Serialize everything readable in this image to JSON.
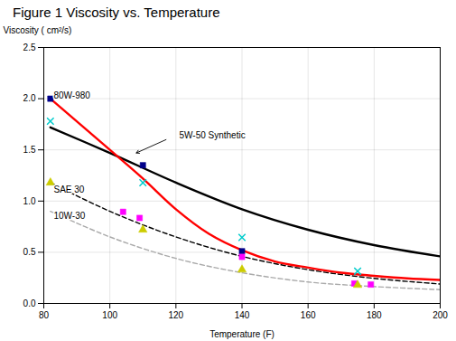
{
  "chart_data": {
    "type": "line",
    "title": "Figure 1 Viscosity vs. Temperature",
    "xlabel": "Temperature (F)",
    "ylabel": "Viscosity ( cm²/s)",
    "xlim": [
      80,
      200
    ],
    "ylim": [
      0,
      2.5
    ],
    "xticks": [
      80,
      100,
      120,
      140,
      160,
      180,
      200
    ],
    "yticks": [
      {
        "value": 0,
        "label": "0.0"
      },
      {
        "value": 0.5,
        "label": "0.5"
      },
      {
        "value": 1.0,
        "label": "1.0"
      },
      {
        "value": 1.5,
        "label": "1.5"
      },
      {
        "value": 2.0,
        "label": "2.0"
      },
      {
        "value": 2.5,
        "label": "2.5"
      }
    ],
    "grid": true,
    "series": [
      {
        "type": "line",
        "color": "#ff0000",
        "line_style": "solid",
        "x": [
          82,
          100,
          110,
          120,
          130,
          140,
          150,
          160,
          170,
          180,
          190,
          200
        ],
        "values": [
          2.0,
          1.5,
          1.22,
          0.92,
          0.68,
          0.52,
          0.41,
          0.35,
          0.3,
          0.27,
          0.245,
          0.23
        ]
      },
      {
        "type": "line",
        "color": "#000000",
        "line_style": "solid",
        "x": [
          82,
          100,
          120,
          140,
          160,
          180,
          200
        ],
        "values": [
          1.72,
          1.47,
          1.18,
          0.92,
          0.72,
          0.57,
          0.46
        ]
      },
      {
        "type": "line",
        "color": "#000000",
        "line_style": "dashed",
        "x": [
          82,
          100,
          120,
          140,
          160,
          180,
          200
        ],
        "values": [
          1.18,
          0.9,
          0.65,
          0.46,
          0.33,
          0.245,
          0.19
        ]
      },
      {
        "type": "line",
        "color": "#aaaaaa",
        "line_style": "dashed",
        "x": [
          82,
          100,
          120,
          140,
          160,
          180,
          200
        ],
        "values": [
          0.9,
          0.65,
          0.44,
          0.3,
          0.21,
          0.165,
          0.135
        ]
      },
      {
        "type": "scatter",
        "color": "#00008b",
        "marker": "square",
        "x": [
          82,
          110,
          140
        ],
        "values": [
          2.0,
          1.35,
          0.51
        ]
      },
      {
        "type": "scatter",
        "color": "#00cccc",
        "marker": "x",
        "x": [
          82,
          110,
          140,
          175
        ],
        "values": [
          1.78,
          1.18,
          0.645,
          0.315
        ]
      },
      {
        "type": "scatter",
        "color": "#ff00ff",
        "marker": "square",
        "x": [
          104,
          109,
          140,
          174,
          179
        ],
        "values": [
          0.895,
          0.835,
          0.455,
          0.195,
          0.185
        ]
      },
      {
        "type": "scatter",
        "color": "#cccc00",
        "marker": "triangle",
        "x": [
          82,
          110,
          140,
          175
        ],
        "values": [
          1.18,
          0.72,
          0.33,
          0.18
        ]
      }
    ],
    "annotations": [
      {
        "text": "80W-980",
        "x": 83,
        "y": 2.03
      },
      {
        "text": "5W-50 Synthetic",
        "x": 121,
        "y": 1.64,
        "arrow": {
          "from": [
            117,
            1.6
          ],
          "to": [
            108,
            1.47
          ]
        }
      },
      {
        "text": "SAE 30",
        "x": 83,
        "y": 1.11
      },
      {
        "text": "10W-30",
        "x": 83,
        "y": 0.855
      }
    ]
  }
}
